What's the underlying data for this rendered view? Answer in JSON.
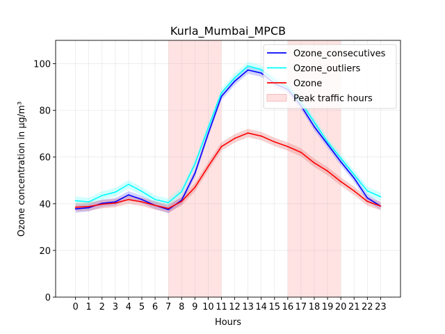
{
  "chart_data": {
    "type": "line",
    "title": "Kurla_Mumbai_MPCB",
    "xlabel": "Hours",
    "ylabel": "Ozone concentration in µg/m³",
    "xlim": [
      -1.5,
      24.5
    ],
    "ylim": [
      0,
      110
    ],
    "x_ticks": [
      0,
      1,
      2,
      3,
      4,
      5,
      6,
      7,
      8,
      9,
      10,
      11,
      12,
      13,
      14,
      15,
      16,
      17,
      18,
      19,
      20,
      21,
      22,
      23
    ],
    "y_ticks": [
      0,
      20,
      40,
      60,
      80,
      100
    ],
    "grid": true,
    "legend_position": "top-right",
    "x": [
      0,
      1,
      2,
      3,
      4,
      5,
      6,
      7,
      8,
      9,
      10,
      11,
      12,
      13,
      14,
      15,
      16,
      17,
      18,
      19,
      20,
      21,
      22,
      23
    ],
    "series": [
      {
        "name": "Ozone_consecutives",
        "color": "#0000ff",
        "band_color": "#6666ff",
        "band_width": 1.6,
        "values": [
          37.8,
          38.3,
          40.2,
          40.8,
          43.8,
          41.8,
          39.3,
          37.5,
          41.5,
          53.0,
          70.0,
          86.0,
          92.5,
          97.3,
          96.0,
          91.5,
          89.0,
          82.0,
          73.0,
          65.5,
          58.0,
          51.0,
          42.5,
          39.0
        ]
      },
      {
        "name": "Ozone_outliers",
        "color": "#00ffff",
        "band_color": "#66ffff",
        "band_width": 1.8,
        "values": [
          41.3,
          40.8,
          43.5,
          45.0,
          48.3,
          45.3,
          41.8,
          40.5,
          45.2,
          57.0,
          72.5,
          87.5,
          94.0,
          99.0,
          97.5,
          93.0,
          90.0,
          83.5,
          75.0,
          66.5,
          59.5,
          52.5,
          45.5,
          43.0
        ]
      },
      {
        "name": "Ozone",
        "color": "#ff0000",
        "band_color": "#e06666",
        "band_width": 1.8,
        "values": [
          38.5,
          38.8,
          39.8,
          40.3,
          41.8,
          40.8,
          39.3,
          38.0,
          41.0,
          47.0,
          56.0,
          64.5,
          68.0,
          70.3,
          69.0,
          66.5,
          64.5,
          62.0,
          57.5,
          54.0,
          49.5,
          45.5,
          41.0,
          39.0
        ]
      }
    ],
    "shaded_regions": [
      {
        "name": "Peak traffic hours",
        "start": 7,
        "end": 11,
        "color": "#ffcccc",
        "opacity": 0.55
      },
      {
        "start": 16,
        "end": 20,
        "color": "#ffcccc",
        "opacity": 0.55
      }
    ]
  }
}
